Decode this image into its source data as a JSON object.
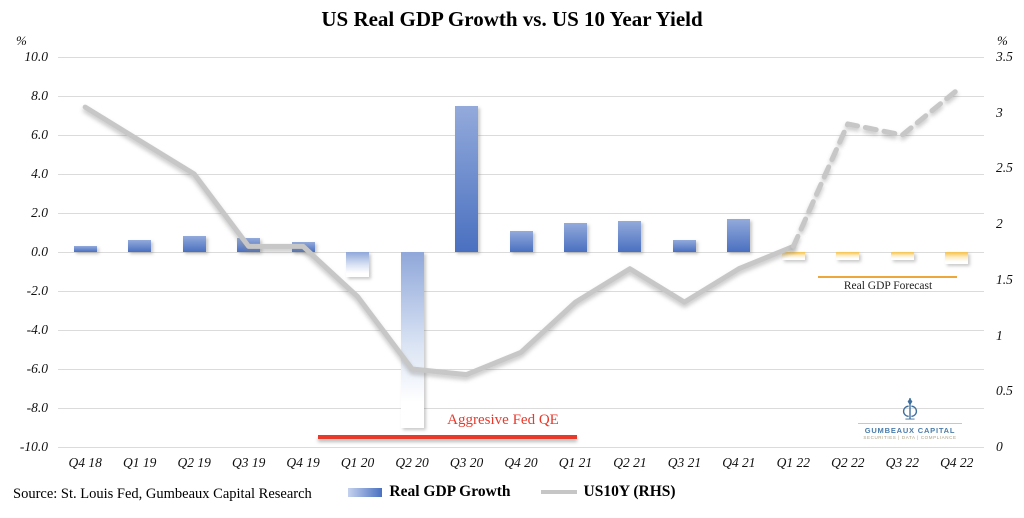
{
  "title": "US Real GDP Growth vs. US 10 Year Yield",
  "source_note": "Source: St. Louis Fed, Gumbeaux Capital Research",
  "annotations": {
    "qe_label": "Aggresive Fed QE",
    "forecast_label": "Real GDP Forecast"
  },
  "legend": {
    "gdp_label": "Real GDP Growth",
    "us10y_label": "US10Y (RHS)"
  },
  "logo": {
    "name": "GUMBEAUX CAPITAL",
    "tagline": "SECURITIES | DATA | COMPLIANCE",
    "icon": "fleur-de-lis-monogram-icon"
  },
  "colors": {
    "bar_blue_dark": "#4a70c0",
    "bar_blue_light": "#93aadb",
    "forecast_yellow": "#f3c14b",
    "line_gray": "#c7c7c7",
    "qe_red": "#e8392b",
    "forecast_orange": "#eda73a",
    "gridline": "#dbdbdb",
    "logo_blue": "#4a7dab"
  },
  "chart_data": {
    "type": "bar",
    "subtype": "combo-bar-line-dual-axis",
    "title": "US Real GDP Growth vs. US 10 Year Yield",
    "categories": [
      "Q4 18",
      "Q1 19",
      "Q2 19",
      "Q3 19",
      "Q4 19",
      "Q1 20",
      "Q2 20",
      "Q3 20",
      "Q4 20",
      "Q1 21",
      "Q2 21",
      "Q3 21",
      "Q4 21",
      "Q1 22",
      "Q2 22",
      "Q3 22",
      "Q4 22"
    ],
    "series": [
      {
        "name": "Real GDP Growth",
        "type": "bar",
        "axis": "left",
        "values": [
          0.3,
          0.6,
          0.8,
          0.7,
          0.5,
          -1.3,
          -9.0,
          7.5,
          1.1,
          1.5,
          1.6,
          0.6,
          1.7,
          null,
          null,
          null,
          null
        ]
      },
      {
        "name": "Real GDP Forecast",
        "type": "bar",
        "axis": "left",
        "values": [
          null,
          null,
          null,
          null,
          null,
          null,
          null,
          null,
          null,
          null,
          null,
          null,
          null,
          -0.4,
          -0.4,
          -0.4,
          -0.6
        ]
      },
      {
        "name": "US10Y (RHS)",
        "type": "line",
        "axis": "right",
        "dashed_from_index": 13,
        "values": [
          3.05,
          2.75,
          2.45,
          1.8,
          1.8,
          1.35,
          0.7,
          0.65,
          0.85,
          1.3,
          1.6,
          1.3,
          1.6,
          1.8,
          2.9,
          2.8,
          3.2
        ]
      }
    ],
    "left_axis": {
      "label": "%",
      "min": -10,
      "max": 10,
      "step": 2,
      "ticks": [
        "10.0",
        "8.0",
        "6.0",
        "4.0",
        "2.0",
        "0.0",
        "-2.0",
        "-4.0",
        "-6.0",
        "-8.0",
        "-10.0"
      ]
    },
    "right_axis": {
      "label": "%",
      "min": 0,
      "max": 3.5,
      "step": 0.5,
      "ticks": [
        "3.5",
        "3",
        "2.5",
        "2",
        "1.5",
        "1",
        "0.5",
        "0"
      ]
    },
    "grid": true,
    "legend_position": "bottom"
  }
}
